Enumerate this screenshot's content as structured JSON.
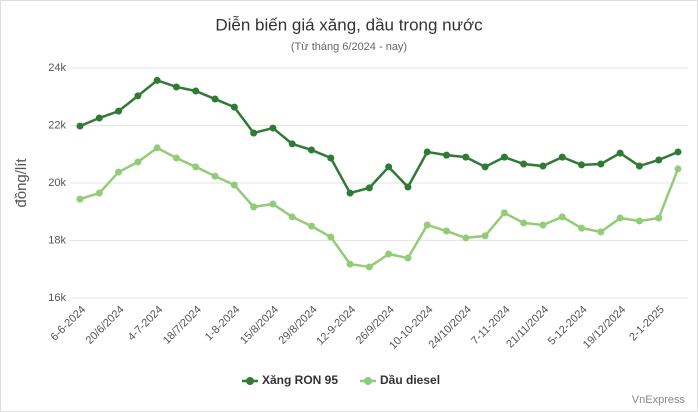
{
  "chart_data": {
    "type": "line",
    "title": "Diễn biến giá xăng, dầu trong nước",
    "subtitle": "(Từ tháng 6/2024 - nay)",
    "y_label": "đồng/lít",
    "source": "VnExpress",
    "categories": [
      "6-6-2024",
      null,
      "20/6/2024",
      null,
      "4-7-2024",
      null,
      "18/7/2024",
      null,
      "1-8-2024",
      null,
      "15/8/2024",
      null,
      "29/8/2024",
      null,
      "12-9-2024",
      null,
      "26/9/2024",
      null,
      "10-10-2024",
      null,
      "24/10/2024",
      null,
      "7-11-2024",
      null,
      "21/11/2024",
      null,
      "5-12-2024",
      null,
      "19/12/2024",
      null,
      "2-1-2025",
      null
    ],
    "series": [
      {
        "name": "Xăng RON 95",
        "color": "#2f7a34",
        "values": [
          21980,
          22260,
          22500,
          23030,
          23570,
          23340,
          23200,
          22920,
          22640,
          21740,
          21910,
          21360,
          21150,
          20870,
          19650,
          19830,
          20560,
          19860,
          21080,
          20970,
          20900,
          20560,
          20900,
          20660,
          20590,
          20900,
          20630,
          20660,
          21040,
          20590,
          20800,
          21080
        ]
      },
      {
        "name": "Dầu diesel",
        "color": "#93cc76",
        "values": [
          19440,
          19650,
          20380,
          20730,
          21220,
          20870,
          20560,
          20240,
          19930,
          19170,
          19270,
          18820,
          18500,
          18120,
          17180,
          17080,
          17530,
          17390,
          18540,
          18330,
          18090,
          18160,
          18960,
          18610,
          18540,
          18820,
          18430,
          18300,
          18780,
          18680,
          18780,
          20490
        ]
      }
    ],
    "ylim": [
      16000,
      24000
    ],
    "yticks": [
      {
        "value": 16000,
        "label": "16k"
      },
      {
        "value": 18000,
        "label": "18k"
      },
      {
        "value": 20000,
        "label": "20k"
      },
      {
        "value": 22000,
        "label": "22k"
      },
      {
        "value": 24000,
        "label": "24k"
      }
    ],
    "grid": true
  }
}
